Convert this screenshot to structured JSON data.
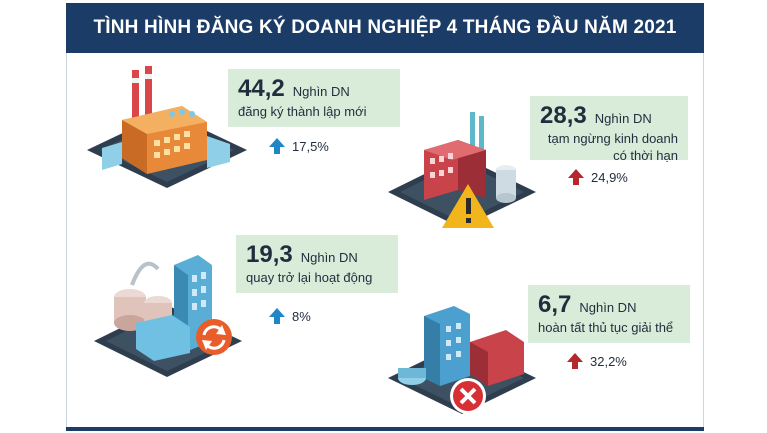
{
  "title": "TÌNH HÌNH ĐĂNG KÝ DOANH NGHIỆP 4 THÁNG ĐẦU NĂM 2021",
  "colors": {
    "header": "#1a3c66",
    "card": "#d8ecd9",
    "up_blue": "#1f86c8",
    "up_red": "#b3282d"
  },
  "items": [
    {
      "value": "44,2",
      "unit": "Nghìn DN",
      "desc": [
        "đăng ký thành lập mới"
      ],
      "change": "17,5%",
      "arrow": "up-blue",
      "icon": "factory-icon"
    },
    {
      "value": "28,3",
      "unit": "Nghìn DN",
      "desc": [
        "tạm ngừng kinh doanh",
        "có thời hạn"
      ],
      "change": "24,9%",
      "arrow": "up-red",
      "icon": "warning-icon"
    },
    {
      "value": "19,3",
      "unit": "Nghìn DN",
      "desc": [
        "quay trở lại hoạt động"
      ],
      "change": "8%",
      "arrow": "up-blue",
      "icon": "refresh-icon"
    },
    {
      "value": "6,7",
      "unit": "Nghìn DN",
      "desc": [
        "hoàn tất thủ tục giải thể"
      ],
      "change": "32,2%",
      "arrow": "up-red",
      "icon": "close-icon"
    }
  ]
}
